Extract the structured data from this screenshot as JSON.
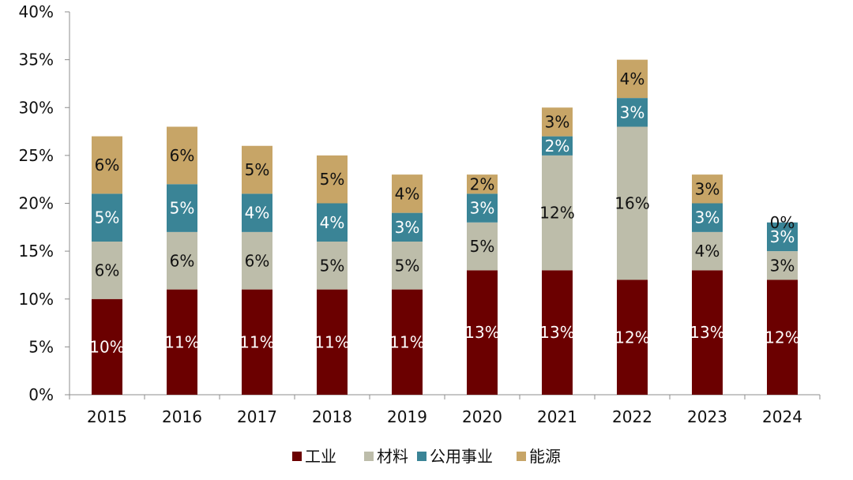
{
  "chart_data": {
    "type": "bar",
    "stacked": true,
    "title": "",
    "xlabel": "",
    "ylabel": "",
    "categories": [
      "2015",
      "2016",
      "2017",
      "2018",
      "2019",
      "2020",
      "2021",
      "2022",
      "2023",
      "2024"
    ],
    "series": [
      {
        "name": "工业",
        "color": "#6b0000",
        "label_color": "#ffffff",
        "values": [
          10,
          11,
          11,
          11,
          11,
          13,
          13,
          12,
          13,
          12
        ],
        "labels": [
          "10%",
          "11%",
          "11%",
          "11%",
          "11%",
          "13%",
          "13%",
          "12%",
          "13%",
          "12%"
        ]
      },
      {
        "name": "材料",
        "color": "#bdbdaa",
        "label_color": "#111111",
        "values": [
          6,
          6,
          6,
          5,
          5,
          5,
          12,
          16,
          4,
          3
        ],
        "labels": [
          "6%",
          "6%",
          "6%",
          "5%",
          "5%",
          "5%",
          "12%",
          "16%",
          "4%",
          "3%"
        ]
      },
      {
        "name": "公用事业",
        "color": "#3a8496",
        "label_color": "#ffffff",
        "values": [
          5,
          5,
          4,
          4,
          3,
          3,
          2,
          3,
          3,
          3
        ],
        "labels": [
          "5%",
          "5%",
          "4%",
          "4%",
          "3%",
          "3%",
          "2%",
          "3%",
          "3%",
          "3%"
        ]
      },
      {
        "name": "能源",
        "color": "#c7a567",
        "label_color": "#111111",
        "values": [
          6,
          6,
          5,
          5,
          4,
          2,
          3,
          4,
          3,
          0
        ],
        "labels": [
          "6%",
          "6%",
          "5%",
          "5%",
          "4%",
          "2%",
          "3%",
          "4%",
          "3%",
          "0%"
        ]
      }
    ],
    "totals": [
      27,
      28,
      26,
      25,
      23,
      23,
      30,
      35,
      23,
      18
    ],
    "ylim": [
      0,
      40
    ],
    "yticks": [
      0,
      5,
      10,
      15,
      20,
      25,
      30,
      35,
      40
    ],
    "ytick_labels": [
      "0%",
      "5%",
      "10%",
      "15%",
      "20%",
      "25%",
      "30%",
      "35%",
      "40%"
    ],
    "legend_position": "bottom",
    "grid": false
  }
}
